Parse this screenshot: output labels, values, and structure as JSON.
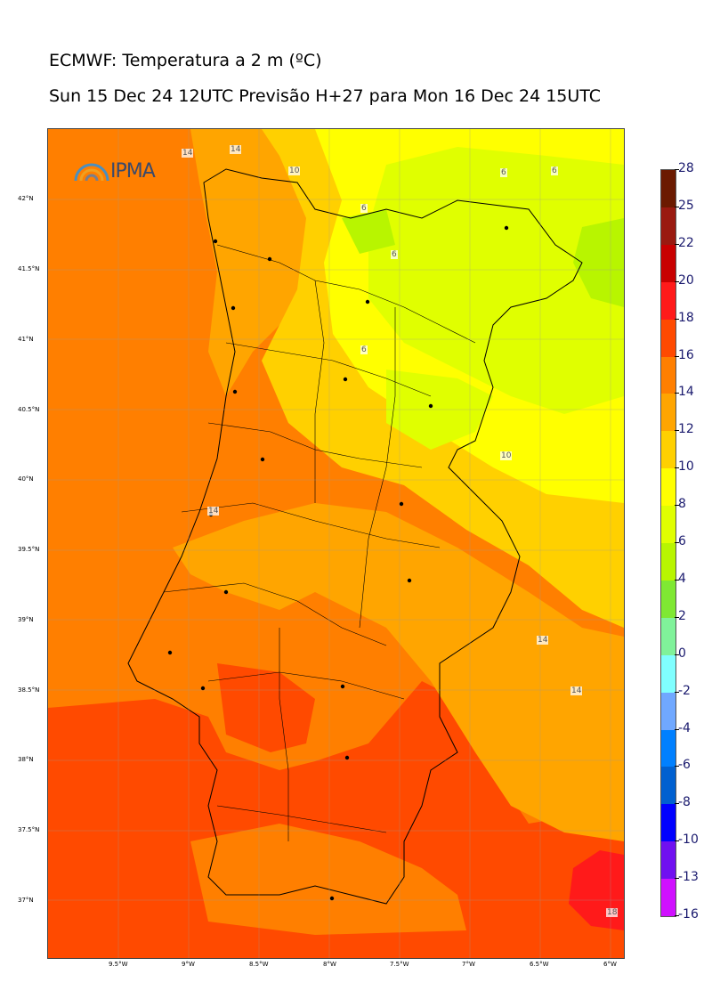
{
  "header": {
    "title": "ECMWF: Temperatura a 2 m (ºC)",
    "subtitle": "Sun 15 Dec 24 12UTC Previsão H+27 para Mon 16 Dec 24 15UTC"
  },
  "logo": {
    "text": "IPMA",
    "icon": "ipma-arc-icon"
  },
  "axes": {
    "lat_labels": [
      "42°N",
      "41.5°N",
      "41°N",
      "40.5°N",
      "40°N",
      "39.5°N",
      "39°N",
      "38.5°N",
      "38°N",
      "37.5°N",
      "37°N"
    ],
    "lon_labels": [
      "9.5°W",
      "9°W",
      "8.5°W",
      "8°W",
      "7.5°W",
      "7°W",
      "6.5°W",
      "6°W"
    ]
  },
  "colorbar": {
    "labels": [
      "28",
      "25",
      "22",
      "20",
      "18",
      "16",
      "14",
      "12",
      "10",
      "8",
      "6",
      "4",
      "2",
      "0",
      "-2",
      "-4",
      "-6",
      "-8",
      "-10",
      "-13",
      "-16"
    ],
    "colors": [
      "#6b1a00",
      "#9a1a10",
      "#c80000",
      "#ff1a1a",
      "#ff4a00",
      "#ff7f00",
      "#ffa500",
      "#ffd000",
      "#ffff00",
      "#e0ff00",
      "#b8f500",
      "#7fe833",
      "#80f29a",
      "#80ffff",
      "#70a8ff",
      "#0080ff",
      "#0060d0",
      "#0000ff",
      "#7010f0",
      "#d010ff"
    ]
  },
  "contour_labels": [
    "14",
    "14",
    "10",
    "6",
    "6",
    "6",
    "6",
    "6",
    "10",
    "14",
    "14",
    "14",
    "18"
  ],
  "cities": [
    "city-1",
    "city-2",
    "city-3",
    "city-4",
    "city-5",
    "city-6",
    "city-7",
    "city-8",
    "city-9",
    "city-10",
    "city-11",
    "city-12",
    "city-13",
    "city-14",
    "city-15",
    "city-16",
    "city-17",
    "city-18"
  ]
}
